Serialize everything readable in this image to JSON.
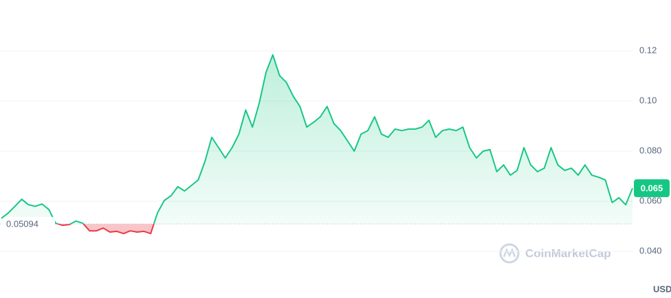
{
  "chart_data": {
    "type": "line",
    "values": [
      0.0532,
      0.0553,
      0.058,
      0.0608,
      0.0586,
      0.058,
      0.0589,
      0.0567,
      0.0512,
      0.0504,
      0.0507,
      0.0521,
      0.0512,
      0.0482,
      0.0482,
      0.0493,
      0.0477,
      0.048,
      0.0471,
      0.0482,
      0.0477,
      0.048,
      0.0471,
      0.0553,
      0.0603,
      0.0622,
      0.0658,
      0.0641,
      0.0663,
      0.0685,
      0.0759,
      0.0855,
      0.0814,
      0.0773,
      0.0814,
      0.0868,
      0.0964,
      0.0896,
      0.0992,
      0.1115,
      0.1184,
      0.1101,
      0.1074,
      0.1019,
      0.0978,
      0.0896,
      0.0915,
      0.0937,
      0.0978,
      0.091,
      0.0882,
      0.0841,
      0.08,
      0.0868,
      0.0882,
      0.0937,
      0.0868,
      0.0855,
      0.0888,
      0.0882,
      0.0888,
      0.0888,
      0.0896,
      0.0923,
      0.0855,
      0.0882,
      0.0888,
      0.0882,
      0.0896,
      0.0814,
      0.0773,
      0.08,
      0.0806,
      0.0718,
      0.0745,
      0.0704,
      0.0723,
      0.0814,
      0.0745,
      0.0718,
      0.0732,
      0.0814,
      0.0745,
      0.0723,
      0.0732,
      0.0704,
      0.0745,
      0.0704,
      0.0696,
      0.0685,
      0.0595,
      0.0614,
      0.0586,
      0.0652
    ],
    "last_value_label": "0.065",
    "baseline": {
      "value": 0.05094,
      "label": "0.05094"
    },
    "up_color": "#16c784",
    "down_color": "#ea3943",
    "ylim": [
      0.0214,
      0.1403
    ],
    "yticks": [
      {
        "value": 0.04,
        "label": "0.040"
      },
      {
        "value": 0.06,
        "label": "0.060"
      },
      {
        "value": 0.08,
        "label": "0.080"
      },
      {
        "value": 0.1,
        "label": "0.10"
      },
      0.12
    ],
    "grid": true,
    "watermark": "CoinMarketCap",
    "unit": "USD"
  }
}
